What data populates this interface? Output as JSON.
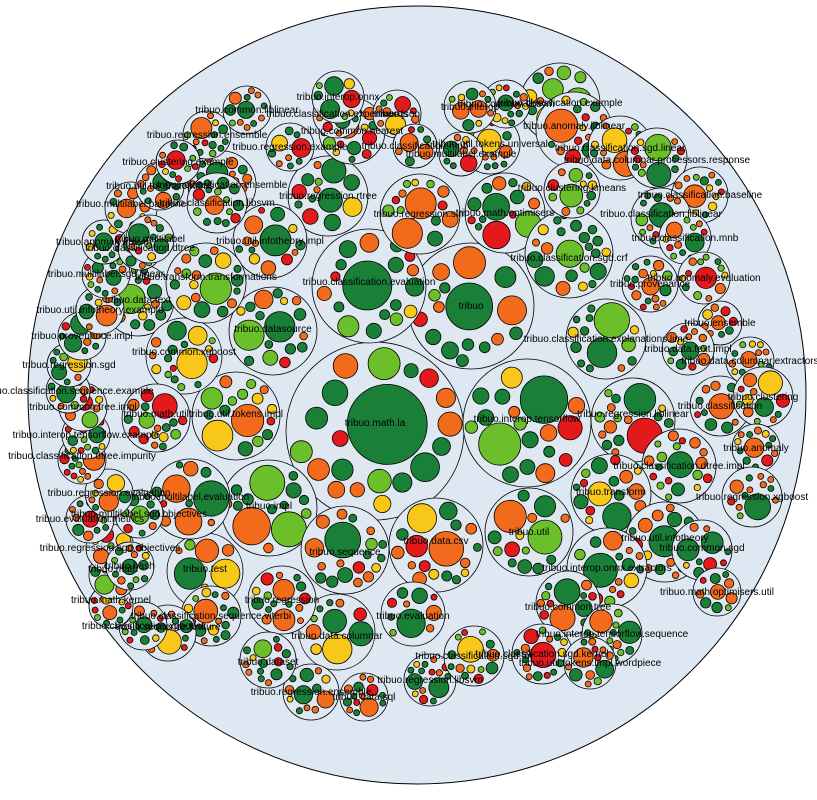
{
  "colors": {
    "background": "#ffffff",
    "root_fill": "#dde8f3",
    "package_fill": "#dfe8f1",
    "stroke": "#000000",
    "dark_green": "#1a7f37",
    "light_green": "#6abf2a",
    "orange": "#f26a1b",
    "yellow": "#f7c719",
    "red": "#e3191c"
  },
  "packages": [
    {
      "label": "tribuo.math.la"
    },
    {
      "label": "tribuo.interop.tensorflow"
    },
    {
      "label": "tribuo"
    },
    {
      "label": "tribuo.classification.evaluation"
    },
    {
      "label": "tribuo.datasource"
    },
    {
      "label": "tribuo.util.tokens.impl"
    },
    {
      "label": "tribuo.impl"
    },
    {
      "label": "tribuo.data.csv"
    },
    {
      "label": "tribuo.util"
    },
    {
      "label": "tribuo.sequence"
    },
    {
      "label": "tribuo.regression.rtree"
    },
    {
      "label": "tribuo.regression.slm"
    },
    {
      "label": "tribuo.math.optimisers"
    },
    {
      "label": "tribuo.classification.sgd.crf"
    },
    {
      "label": "tribuo.classification.explanations.lime"
    },
    {
      "label": "tribuo.regression.liblinear"
    },
    {
      "label": "tribuo.classification.dtree.impl"
    },
    {
      "label": "tribuo.transform"
    },
    {
      "label": "tribuo.util.infotheory"
    },
    {
      "label": "tribuo.common.sgd"
    },
    {
      "label": "tribuo.interop.onnx.extractors"
    },
    {
      "label": "tribuo.common.tree"
    },
    {
      "label": "tribuo.interop.tensorflow.sequence"
    },
    {
      "label": "tribuo.evaluation"
    },
    {
      "label": "tribuo.data.columnar"
    },
    {
      "label": "tribuo.regression"
    },
    {
      "label": "tribuo.test"
    },
    {
      "label": "tribuo.multilabel.evaluation"
    },
    {
      "label": "tribuo.util.infotheory.impl"
    },
    {
      "label": "tribuo.data.text"
    },
    {
      "label": "tribuo.common.xgboost"
    },
    {
      "label": "tribuo.transform.transformations"
    },
    {
      "label": "tribuo.common.nearest"
    },
    {
      "label": "tribuo.classification.ensemble"
    },
    {
      "label": "tribuo.classification.libsvm"
    },
    {
      "label": "tribuo.classification.example"
    },
    {
      "label": "tribuo.anomaly.liblinear"
    },
    {
      "label": "tribuo.util.tokens.universal"
    },
    {
      "label": "tribuo.classification.sgd.linear"
    },
    {
      "label": "tribuo.data.columnar.processors.response"
    },
    {
      "label": "tribuo.clustering.kmeans"
    },
    {
      "label": "tribuo.classification.baseline"
    },
    {
      "label": "tribuo.classification.liblinear"
    },
    {
      "label": "tribuo.classification.mnb"
    },
    {
      "label": "tribuo.anomaly.evaluation"
    },
    {
      "label": "tribuo.provenance"
    },
    {
      "label": "tribuo.ensemble"
    },
    {
      "label": "tribuo.data.text.impl"
    },
    {
      "label": "tribuo.data.columnar.extractors"
    },
    {
      "label": "tribuo.classification"
    },
    {
      "label": "tribuo.clustering"
    },
    {
      "label": "tribuo.anomaly"
    },
    {
      "label": "tribuo.regression.xgboost"
    },
    {
      "label": "tribuo.math.optimisers.util"
    },
    {
      "label": "tribuo.classification.sgd.kernel"
    },
    {
      "label": "tribuo.util.tokens.impl.wordpiece"
    },
    {
      "label": "tribuo.regression.libsvm"
    },
    {
      "label": "tribuo.classification.sgd.fm"
    },
    {
      "label": "tribuo.data.sql"
    },
    {
      "label": "tribuo.regression.ensemble"
    },
    {
      "label": "tribuo.dataset"
    },
    {
      "label": "tribuo.classification.sequence.viterbi"
    },
    {
      "label": "tribuo.sequence.feature"
    },
    {
      "label": "tribuo.math.util"
    },
    {
      "label": "tribuo.classification.xgboost"
    },
    {
      "label": "tribuo.math.kernel"
    },
    {
      "label": "tribuo.math"
    },
    {
      "label": "tribuo.regression.sgd.objectives"
    },
    {
      "label": "tribuo.evaluation.metrics"
    },
    {
      "label": "tribuo.multilabel.sgd.objectives"
    },
    {
      "label": "tribuo.regression.evaluation"
    },
    {
      "label": "tribuo.classification.dtree.impurity"
    },
    {
      "label": "tribuo.interop.tensorflow.example"
    },
    {
      "label": "tribuo.common.tree.impl"
    },
    {
      "label": "tribuo.classification.sequence.example"
    },
    {
      "label": "tribuo.regression.sgd"
    },
    {
      "label": "tribuo.provenance.impl"
    },
    {
      "label": "tribuo.util.infotheory.example"
    },
    {
      "label": "tribuo.multilabel.sgd.linear"
    },
    {
      "label": "tribuo.anomaly.libsvm"
    },
    {
      "label": "tribuo.multilabel.baseline"
    },
    {
      "label": "tribuo.util.tokens.options"
    },
    {
      "label": "tribuo.regression.ensemble"
    },
    {
      "label": "tribuo.common.liblinear"
    },
    {
      "label": "tribuo.regression.example"
    },
    {
      "label": "tribuo.classification.experiments"
    },
    {
      "label": "tribuo.interop.onnx"
    },
    {
      "label": "tribuo.json"
    },
    {
      "label": "tribuo.classification.mnb"
    },
    {
      "label": "tribuo.multilabel.example"
    },
    {
      "label": "tribuo.common.libsvm"
    },
    {
      "label": "tribuo.clustering.example"
    },
    {
      "label": "tribuo.hash"
    },
    {
      "label": "tribuo.classification.dtree"
    },
    {
      "label": "tribuo.multilabel"
    },
    {
      "label": "tribuo.interop"
    }
  ]
}
